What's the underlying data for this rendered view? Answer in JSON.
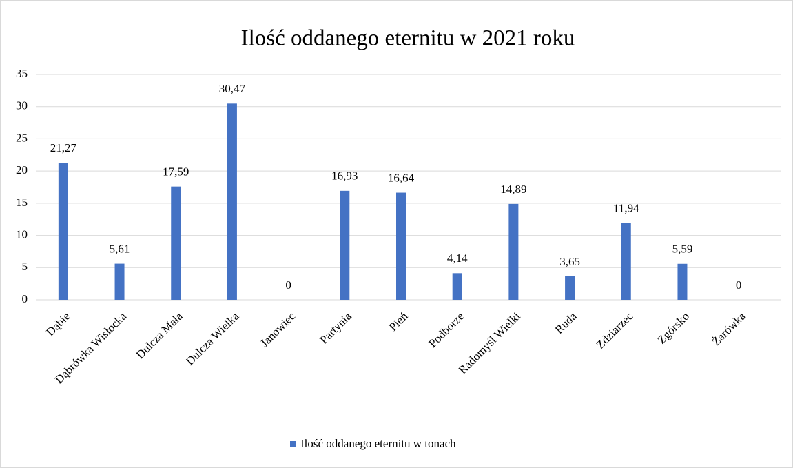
{
  "chart_data": {
    "type": "bar",
    "title": "Ilość oddanego  eternitu w 2021 roku",
    "categories": [
      "Dąbie",
      "Dąbrówka Wisłocka",
      "Dulcza Mała",
      "Dulcza Wielka",
      "Janowiec",
      "Partynia",
      "Pień",
      "Podborze",
      "Radomyśl Wielki",
      "Ruda",
      "Zdziarzec",
      "Zgórsko",
      "Żarówka"
    ],
    "series": [
      {
        "name": "Ilość oddanego eternitu w tonach",
        "color": "#4472c4",
        "values": [
          21.27,
          5.61,
          17.59,
          30.47,
          0,
          16.93,
          16.64,
          4.14,
          14.89,
          3.65,
          11.94,
          5.59,
          0
        ],
        "value_labels": [
          "21,27",
          "5,61",
          "17,59",
          "30,47",
          "0",
          "16,93",
          "16,64",
          "4,14",
          "14,89",
          "3,65",
          "11,94",
          "5,59",
          "0"
        ]
      }
    ],
    "ylim": [
      0,
      35
    ],
    "yticks": [
      0,
      5,
      10,
      15,
      20,
      25,
      30,
      35
    ],
    "grid": true,
    "legend": "bottom"
  }
}
